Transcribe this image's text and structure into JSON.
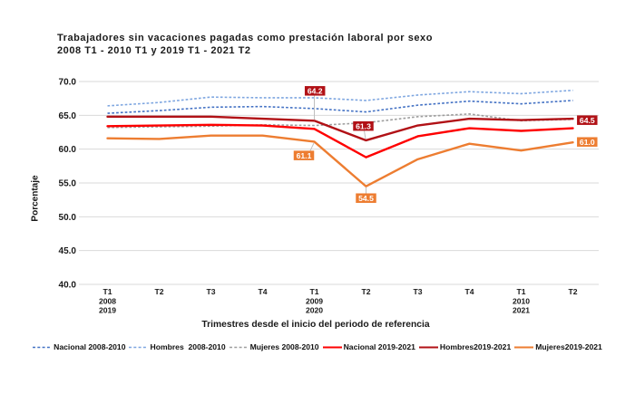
{
  "title": {
    "line1": "Trabajadores sin vacaciones pagadas como prestación laboral por sexo",
    "line2": "2008 T1 - 2010 T1 y 2019 T1 - 2021 T2"
  },
  "y_axis": {
    "title": "Porcentaje",
    "min": 40.0,
    "max": 70.0,
    "step": 5.0,
    "tick_labels": [
      "70.0",
      "65.0",
      "60.0",
      "55.0",
      "50.0",
      "45.0",
      "40.0"
    ]
  },
  "x_axis": {
    "title": "Trimestres desde el inicio del periodo de referencia",
    "tick_labels": [
      [
        "T1",
        "2008",
        "2019"
      ],
      [
        "T2"
      ],
      [
        "T3"
      ],
      [
        "T4"
      ],
      [
        "T1",
        "2009",
        "2020"
      ],
      [
        "T2"
      ],
      [
        "T3"
      ],
      [
        "T4"
      ],
      [
        "T1",
        "2010",
        "2021"
      ],
      [
        "T2"
      ]
    ]
  },
  "colors": {
    "gridline": "#d9d9d9",
    "leader_line": "#bfbfbf",
    "nacional_2008": "#4472c4",
    "hombres_2008": "#7ea6e0",
    "mujeres_2008": "#9e9e9e",
    "nacional_2019": "#fe0000",
    "hombres_2019": "#b11116",
    "mujeres_2019": "#ed7d31",
    "label_text": "#ffffff"
  },
  "chart_data": {
    "type": "line",
    "title": "Trabajadores sin vacaciones pagadas como prestación laboral por sexo 2008 T1 - 2010 T1 y 2019 T1 - 2021 T2",
    "xlabel": "Trimestres desde el inicio del periodo de referencia",
    "ylabel": "Porcentaje",
    "ylim": [
      40.0,
      70.0
    ],
    "ytick_step": 5.0,
    "grid": "horizontal",
    "legend_position": "bottom",
    "categories": [
      "T1 2008/2019",
      "T2",
      "T3",
      "T4",
      "T1 2009/2020",
      "T2",
      "T3",
      "T4",
      "T1 2010/2021",
      "T2"
    ],
    "series": [
      {
        "name": "Nacional 2008-2010",
        "color_key": "nacional_2008",
        "style": "dashed",
        "values": [
          65.3,
          65.7,
          66.2,
          66.3,
          66.0,
          65.5,
          66.5,
          67.1,
          66.7,
          67.2
        ]
      },
      {
        "name": "Hombres  2008-2010",
        "color_key": "hombres_2008",
        "style": "dashed",
        "values": [
          66.4,
          66.9,
          67.7,
          67.6,
          67.6,
          67.2,
          68.0,
          68.5,
          68.2,
          68.7
        ]
      },
      {
        "name": "Mujeres 2008-2010",
        "color_key": "mujeres_2008",
        "style": "dashed",
        "values": [
          63.2,
          63.3,
          63.4,
          63.6,
          63.5,
          63.9,
          64.8,
          65.2,
          64.2,
          64.4
        ]
      },
      {
        "name": "Nacional 2019-2021",
        "color_key": "nacional_2019",
        "style": "solid",
        "values": [
          63.4,
          63.5,
          63.6,
          63.5,
          63.0,
          58.8,
          61.9,
          63.1,
          62.7,
          63.1
        ]
      },
      {
        "name": "Hombres2019-2021",
        "color_key": "hombres_2019",
        "style": "solid",
        "values": [
          64.8,
          64.8,
          64.8,
          64.5,
          64.2,
          61.3,
          63.5,
          64.5,
          64.3,
          64.5
        ]
      },
      {
        "name": "Mujeres2019-2021",
        "color_key": "mujeres_2019",
        "style": "solid",
        "values": [
          61.6,
          61.5,
          62.0,
          62.0,
          61.1,
          54.5,
          58.5,
          60.8,
          59.8,
          61.0
        ]
      }
    ],
    "data_labels": [
      {
        "series": "Hombres2019-2021",
        "index": 4,
        "text": "64.2",
        "placement": "above"
      },
      {
        "series": "Hombres2019-2021",
        "index": 5,
        "text": "61.3",
        "placement": "above-left"
      },
      {
        "series": "Hombres2019-2021",
        "index": 9,
        "text": "64.5",
        "placement": "right"
      },
      {
        "series": "Mujeres2019-2021",
        "index": 4,
        "text": "61.1",
        "placement": "below-left"
      },
      {
        "series": "Mujeres2019-2021",
        "index": 5,
        "text": "54.5",
        "placement": "below"
      },
      {
        "series": "Mujeres2019-2021",
        "index": 9,
        "text": "61.0",
        "placement": "right"
      }
    ]
  }
}
